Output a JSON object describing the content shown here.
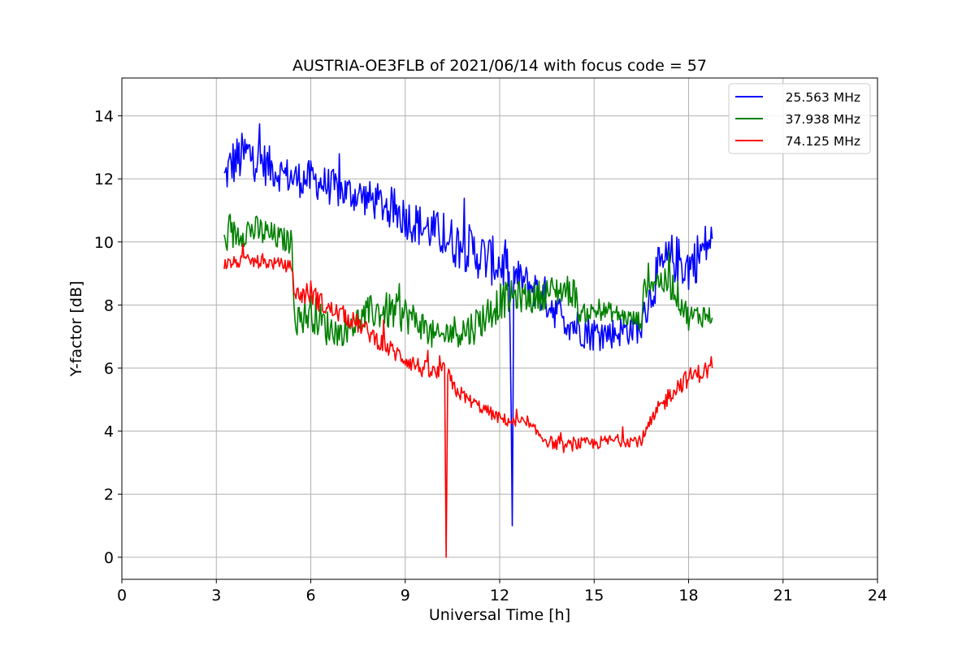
{
  "chart_data": {
    "type": "line",
    "title": "AUSTRIA-OE3FLB of 2021/06/14 with focus code = 57",
    "xlabel": "Universal Time [h]",
    "ylabel": "Y-factor [dB]",
    "xlim": [
      0,
      24
    ],
    "ylim": [
      -0.7,
      15.2
    ],
    "xticks": [
      0,
      3,
      6,
      9,
      12,
      15,
      18,
      21,
      24
    ],
    "yticks": [
      0,
      2,
      4,
      6,
      8,
      10,
      12,
      14
    ],
    "grid": true,
    "legend_position": "top-right",
    "series": [
      {
        "name": "25.563 MHz",
        "color": "#0000ff",
        "x": [
          3.25,
          3.5,
          4.0,
          4.5,
          5.0,
          5.5,
          6.0,
          6.5,
          7.0,
          7.5,
          8.0,
          8.5,
          9.0,
          9.5,
          10.0,
          10.5,
          11.0,
          11.5,
          12.0,
          12.3,
          12.4,
          12.45,
          12.5,
          13.0,
          13.5,
          14.0,
          14.5,
          15.0,
          15.5,
          16.0,
          16.5,
          17.0,
          17.5,
          18.0,
          18.5,
          18.75
        ],
        "y": [
          12.0,
          12.5,
          12.8,
          12.5,
          12.2,
          12.0,
          12.0,
          11.8,
          11.6,
          11.5,
          11.3,
          11.1,
          10.8,
          10.5,
          10.3,
          10.0,
          9.8,
          9.5,
          9.3,
          9.1,
          1.0,
          9.0,
          8.9,
          8.6,
          8.2,
          7.6,
          7.3,
          7.1,
          7.1,
          7.2,
          7.3,
          9.0,
          9.5,
          9.2,
          9.8,
          10.1
        ],
        "spread": [
          0.6,
          0.8,
          0.8,
          0.7,
          0.6,
          0.6,
          0.6,
          0.6,
          0.6,
          0.6,
          0.6,
          0.7,
          0.7,
          0.7,
          0.7,
          0.8,
          0.8,
          0.8,
          0.8,
          0.8,
          0.0,
          0.7,
          0.6,
          0.6,
          0.7,
          0.6,
          0.6,
          0.6,
          0.5,
          0.5,
          0.5,
          0.8,
          0.8,
          0.8,
          0.8,
          0.6
        ]
      },
      {
        "name": "37.938 MHz",
        "color": "#008000",
        "x": [
          3.25,
          3.5,
          4.0,
          4.5,
          5.0,
          5.4,
          5.5,
          5.6,
          6.0,
          6.5,
          7.0,
          7.5,
          8.0,
          8.5,
          9.0,
          9.5,
          10.0,
          10.5,
          11.0,
          11.5,
          12.0,
          12.5,
          13.0,
          13.5,
          14.0,
          14.4,
          14.5,
          15.0,
          15.5,
          16.0,
          16.5,
          16.6,
          17.0,
          17.5,
          18.0,
          18.5,
          18.75
        ],
        "y": [
          10.0,
          10.2,
          10.4,
          10.3,
          10.1,
          10.0,
          7.6,
          7.5,
          7.8,
          7.3,
          7.1,
          7.5,
          7.8,
          7.8,
          7.7,
          7.4,
          6.9,
          7.2,
          7.2,
          7.6,
          8.1,
          8.3,
          8.2,
          8.4,
          8.5,
          8.4,
          7.7,
          7.8,
          7.8,
          7.6,
          7.5,
          8.6,
          8.8,
          8.6,
          7.6,
          7.7,
          7.6
        ],
        "spread": [
          0.4,
          0.5,
          0.5,
          0.5,
          0.4,
          0.4,
          0.5,
          0.5,
          0.6,
          0.6,
          0.4,
          0.5,
          0.6,
          0.6,
          0.6,
          0.5,
          0.5,
          0.5,
          0.6,
          0.6,
          0.6,
          0.5,
          0.5,
          0.5,
          0.5,
          0.5,
          0.3,
          0.3,
          0.3,
          0.3,
          0.3,
          0.4,
          0.4,
          0.5,
          0.4,
          0.4,
          0.3
        ]
      },
      {
        "name": "74.125 MHz",
        "color": "#ff0000",
        "x": [
          3.25,
          4.0,
          5.0,
          5.4,
          5.5,
          6.0,
          6.5,
          7.0,
          7.5,
          8.0,
          8.5,
          9.0,
          9.5,
          10.0,
          10.25,
          10.3,
          10.35,
          10.5,
          11.0,
          11.5,
          12.0,
          12.4,
          12.5,
          12.7,
          13.0,
          13.5,
          14.0,
          14.5,
          15.0,
          15.5,
          16.0,
          16.5,
          17.0,
          17.5,
          18.0,
          18.5,
          18.75
        ],
        "y": [
          9.3,
          9.4,
          9.3,
          9.2,
          8.3,
          8.4,
          7.9,
          7.7,
          7.4,
          7.0,
          6.6,
          6.3,
          6.0,
          5.8,
          5.9,
          0.0,
          5.8,
          5.4,
          5.0,
          4.7,
          4.4,
          4.3,
          4.2,
          4.3,
          4.1,
          3.7,
          3.5,
          3.6,
          3.6,
          3.7,
          3.7,
          3.7,
          4.6,
          5.3,
          5.7,
          5.9,
          6.0
        ],
        "spread": [
          0.2,
          0.2,
          0.2,
          0.2,
          0.3,
          0.4,
          0.3,
          0.3,
          0.3,
          0.3,
          0.3,
          0.3,
          0.3,
          0.3,
          0.3,
          0.0,
          0.3,
          0.3,
          0.2,
          0.2,
          0.2,
          0.2,
          0.2,
          0.2,
          0.2,
          0.2,
          0.2,
          0.2,
          0.2,
          0.2,
          0.2,
          0.2,
          0.3,
          0.3,
          0.3,
          0.3,
          0.3
        ]
      }
    ]
  }
}
